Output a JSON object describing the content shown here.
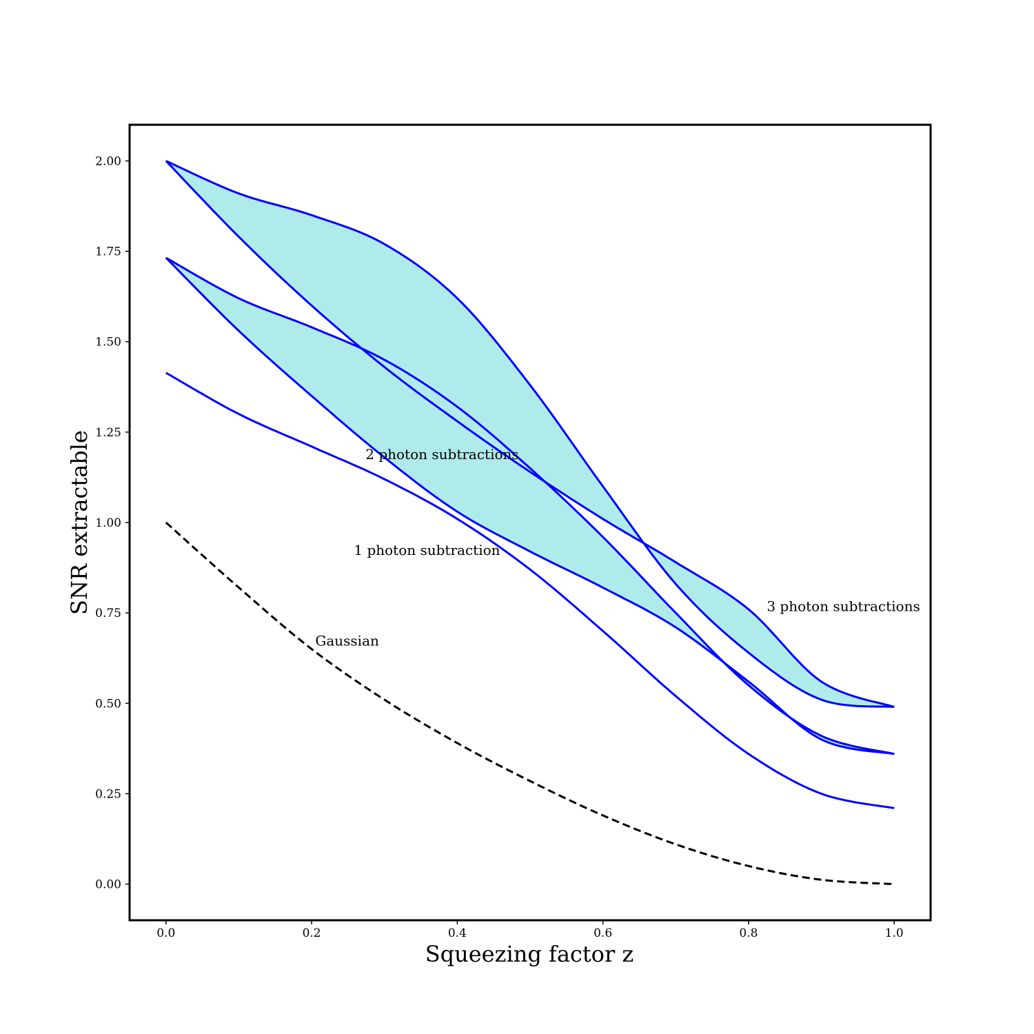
{
  "chart_data": {
    "type": "line",
    "title": "",
    "xlabel": "Squeezing factor z",
    "ylabel": "SNR extractable",
    "xlim": [
      -0.05,
      1.05
    ],
    "ylim": [
      -0.1,
      2.1
    ],
    "xticks": [
      0.0,
      0.2,
      0.4,
      0.6,
      0.8,
      1.0
    ],
    "xtick_labels": [
      "0.0",
      "0.2",
      "0.4",
      "0.6",
      "0.8",
      "1.0"
    ],
    "yticks": [
      0.0,
      0.25,
      0.5,
      0.75,
      1.0,
      1.25,
      1.5,
      1.75,
      2.0
    ],
    "ytick_labels": [
      "0.00",
      "0.25",
      "0.50",
      "0.75",
      "1.00",
      "1.25",
      "1.50",
      "1.75",
      "2.00"
    ],
    "grid": false,
    "legend": "none",
    "colors": {
      "curve": "#0000ff",
      "fill": "#b0ebeb",
      "gaussian": "#000000"
    },
    "x": [
      0.0,
      0.1,
      0.2,
      0.3,
      0.4,
      0.5,
      0.6,
      0.7,
      0.8,
      0.9,
      1.0
    ],
    "series": [
      {
        "values": [
          1.0,
          0.82,
          0.65,
          0.51,
          0.39,
          0.285,
          0.19,
          0.11,
          0.05,
          0.012,
          0.0
        ],
        "style": "dashed"
      },
      {
        "values": [
          1.414,
          1.3,
          1.21,
          1.12,
          1.01,
          0.87,
          0.7,
          0.52,
          0.36,
          0.25,
          0.21
        ],
        "style": "solid"
      },
      {
        "values": [
          1.732,
          1.62,
          1.54,
          1.45,
          1.32,
          1.15,
          0.96,
          0.75,
          0.55,
          0.41,
          0.36
        ],
        "style": "solid"
      },
      {
        "values": [
          1.732,
          1.53,
          1.35,
          1.18,
          1.03,
          0.92,
          0.82,
          0.71,
          0.56,
          0.4,
          0.36
        ],
        "style": "solid"
      },
      {
        "values": [
          2.0,
          1.91,
          1.85,
          1.77,
          1.62,
          1.38,
          1.1,
          0.83,
          0.64,
          0.51,
          0.49
        ],
        "style": "solid"
      },
      {
        "values": [
          2.0,
          1.79,
          1.6,
          1.43,
          1.28,
          1.14,
          1.01,
          0.89,
          0.76,
          0.56,
          0.49
        ],
        "style": "solid"
      }
    ],
    "fills": [
      {
        "between": [
          2,
          3
        ]
      },
      {
        "between": [
          4,
          5
        ]
      }
    ],
    "annotations": [
      {
        "text": "Gaussian",
        "x": 0.205,
        "y": 0.66
      },
      {
        "text": "1 photon subtraction",
        "x": 0.258,
        "y": 0.91
      },
      {
        "text": "2 photon subtractions",
        "x": 0.274,
        "y": 1.175
      },
      {
        "text": "3 photon subtractions",
        "x": 0.825,
        "y": 0.755
      }
    ]
  }
}
